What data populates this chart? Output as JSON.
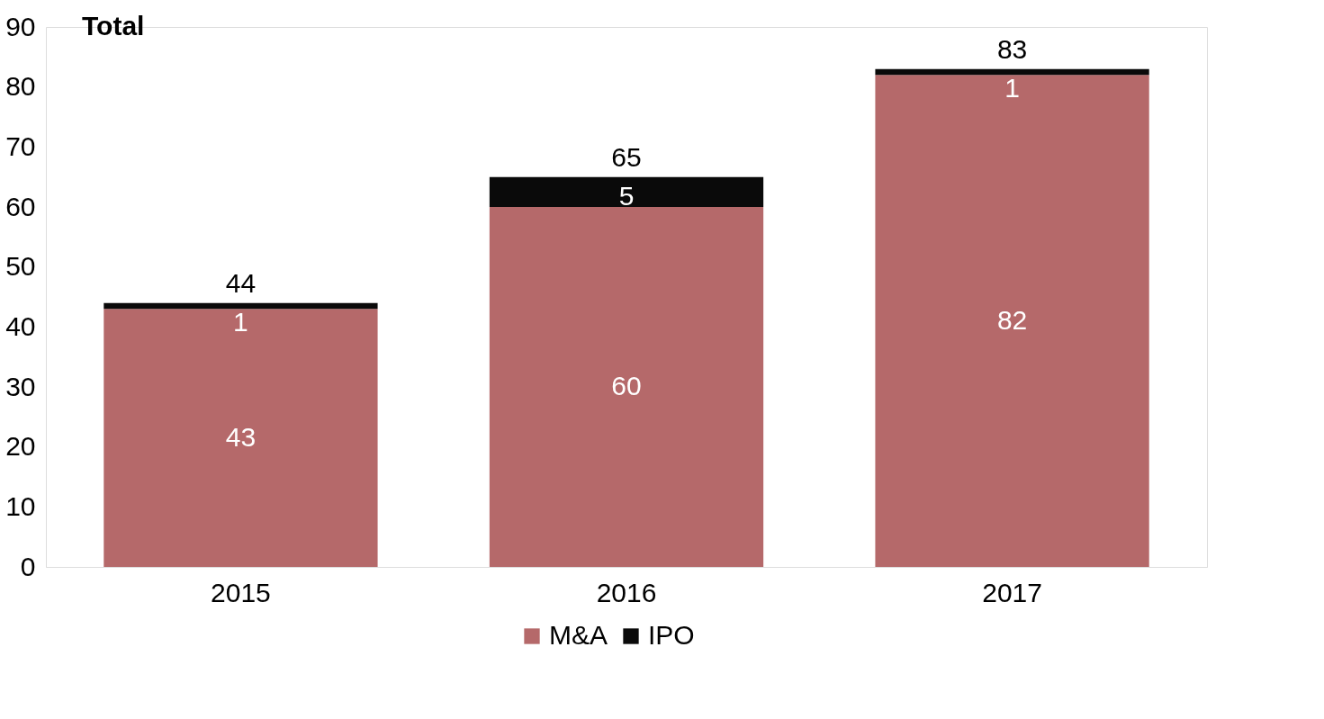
{
  "chart_data": {
    "type": "bar",
    "stacked": true,
    "categories": [
      "2015",
      "2016",
      "2017"
    ],
    "series": [
      {
        "name": "M&A",
        "color": "#b5696a",
        "values": [
          43,
          60,
          82
        ]
      },
      {
        "name": "IPO",
        "color": "#0a0a0a",
        "values": [
          1,
          5,
          1
        ]
      }
    ],
    "ylim": [
      0,
      90
    ],
    "yticks": [
      0,
      10,
      20,
      30,
      40,
      50,
      60,
      70,
      80,
      90
    ],
    "data_labels": true,
    "totals": [
      "44",
      "65",
      "83"
    ],
    "annotations": [
      "Total"
    ],
    "grid": false,
    "legend": "bottom"
  }
}
